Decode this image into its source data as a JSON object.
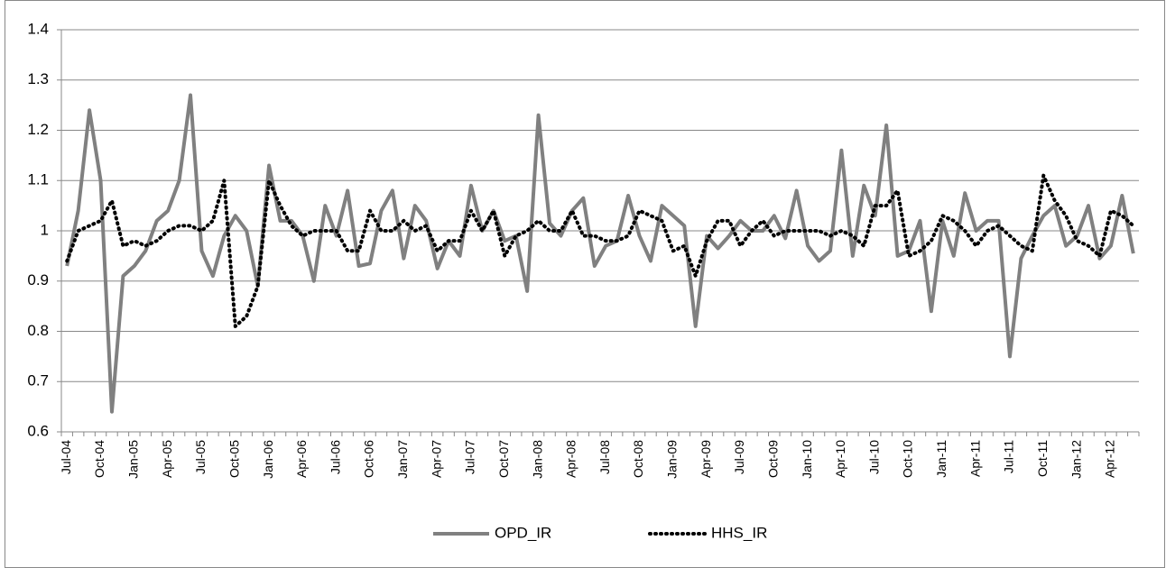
{
  "chart_data": {
    "type": "line",
    "categories": [
      "Jul-04",
      null,
      null,
      "Oct-04",
      null,
      null,
      "Jan-05",
      null,
      null,
      "Apr-05",
      null,
      null,
      "Jul-05",
      null,
      null,
      "Oct-05",
      null,
      null,
      "Jan-06",
      null,
      null,
      "Apr-06",
      null,
      null,
      "Jul-06",
      null,
      null,
      "Oct-06",
      null,
      null,
      "Jan-07",
      null,
      null,
      "Apr-07",
      null,
      null,
      "Jul-07",
      null,
      null,
      "Oct-07",
      null,
      null,
      "Jan-08",
      null,
      null,
      "Apr-08",
      null,
      null,
      "Jul-08",
      null,
      null,
      "Oct-08",
      null,
      null,
      "Jan-09",
      null,
      null,
      "Apr-09",
      null,
      null,
      "Jul-09",
      null,
      null,
      "Oct-09",
      null,
      null,
      "Jan-10",
      null,
      null,
      "Apr-10",
      null,
      null,
      "Jul-10",
      null,
      null,
      "Oct-10",
      null,
      null,
      "Jan-11",
      null,
      null,
      "Apr-11",
      null,
      null,
      "Jul-11",
      null,
      null,
      "Oct-11",
      null,
      null,
      "Jan-12",
      null,
      null,
      "Apr-12",
      null,
      null
    ],
    "series": [
      {
        "name": "OPD_IR",
        "color": "#808080",
        "style": "solid",
        "values": [
          0.93,
          1.04,
          1.24,
          1.1,
          0.64,
          0.91,
          0.93,
          0.96,
          1.02,
          1.04,
          1.1,
          1.27,
          0.96,
          0.91,
          0.99,
          1.03,
          1.0,
          0.89,
          1.13,
          1.02,
          1.02,
          0.99,
          0.9,
          1.05,
          0.99,
          1.08,
          0.93,
          0.935,
          1.04,
          1.08,
          0.945,
          1.05,
          1.02,
          0.925,
          0.98,
          0.95,
          1.09,
          1.0,
          1.04,
          0.98,
          0.99,
          0.88,
          1.23,
          1.015,
          0.99,
          1.04,
          1.065,
          0.93,
          0.97,
          0.98,
          1.07,
          0.99,
          0.94,
          1.05,
          1.03,
          1.01,
          0.81,
          0.99,
          0.965,
          0.99,
          1.02,
          1.0,
          1.0,
          1.03,
          0.985,
          1.08,
          0.97,
          0.94,
          0.96,
          1.16,
          0.95,
          1.09,
          1.03,
          1.21,
          0.95,
          0.96,
          1.02,
          0.84,
          1.02,
          0.95,
          1.075,
          1.0,
          1.02,
          1.02,
          0.75,
          0.945,
          0.99,
          1.03,
          1.05,
          0.97,
          0.99,
          1.05,
          0.945,
          0.97,
          1.07,
          0.955
        ]
      },
      {
        "name": "HHS_IR",
        "color": "#000000",
        "style": "dotted",
        "values": [
          0.94,
          1.0,
          1.01,
          1.02,
          1.06,
          0.97,
          0.98,
          0.97,
          0.98,
          1.0,
          1.01,
          1.01,
          1.0,
          1.02,
          1.1,
          0.81,
          0.83,
          0.89,
          1.1,
          1.05,
          1.01,
          0.99,
          1.0,
          1.0,
          1.0,
          0.96,
          0.96,
          1.04,
          1.0,
          1.0,
          1.02,
          1.0,
          1.01,
          0.96,
          0.98,
          0.98,
          1.04,
          1.0,
          1.04,
          0.95,
          0.99,
          1.0,
          1.02,
          1.0,
          1.0,
          1.04,
          0.99,
          0.99,
          0.98,
          0.98,
          0.99,
          1.04,
          1.03,
          1.02,
          0.96,
          0.97,
          0.91,
          0.98,
          1.02,
          1.02,
          0.97,
          1.0,
          1.02,
          0.99,
          1.0,
          1.0,
          1.0,
          1.0,
          0.99,
          1.0,
          0.99,
          0.97,
          1.05,
          1.05,
          1.08,
          0.95,
          0.96,
          0.98,
          1.03,
          1.02,
          1.0,
          0.97,
          1.0,
          1.01,
          0.99,
          0.97,
          0.96,
          1.11,
          1.06,
          1.03,
          0.98,
          0.97,
          0.95,
          1.04,
          1.03,
          1.01
        ]
      }
    ],
    "ylim": [
      0.6,
      1.4
    ],
    "yticks": [
      0.6,
      0.7,
      0.8,
      0.9,
      1,
      1.1,
      1.2,
      1.3,
      1.4
    ],
    "grid": true,
    "legend": "bottom"
  }
}
